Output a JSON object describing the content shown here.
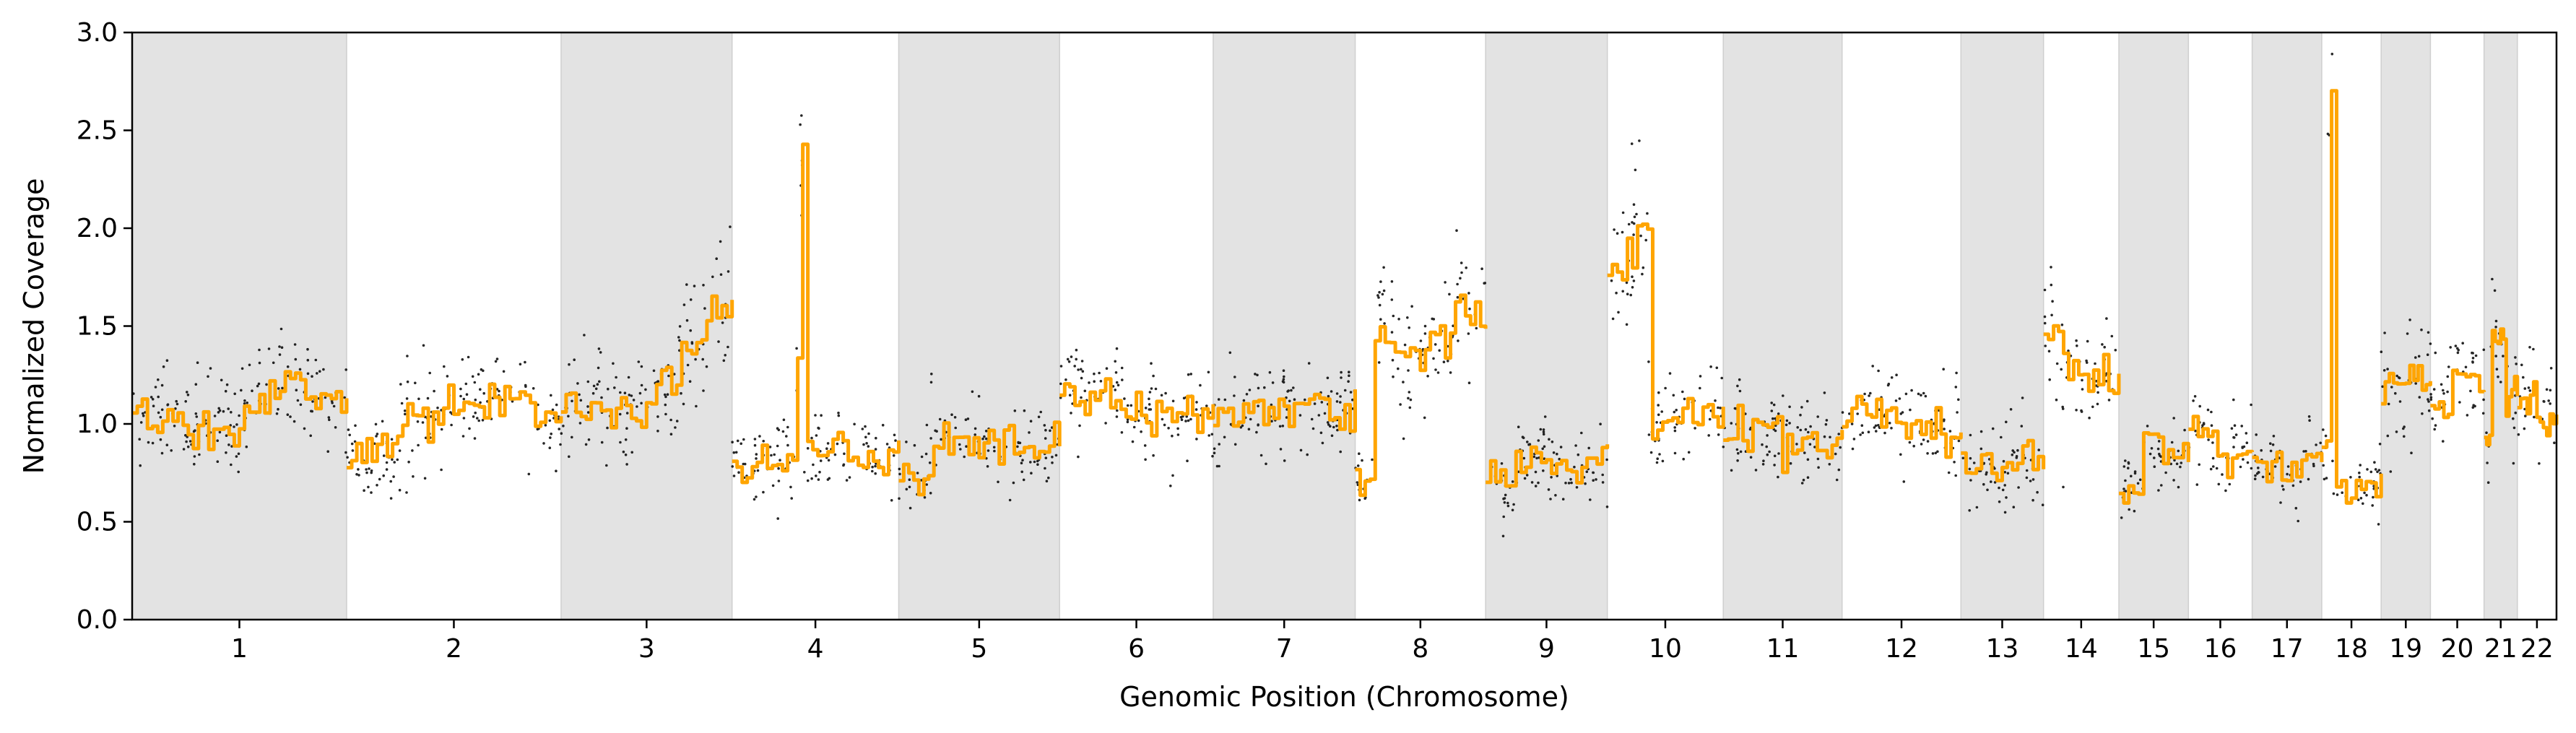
{
  "chart_data": {
    "type": "scatter",
    "title": "",
    "xlabel": "Genomic Position (Chromosome)",
    "ylabel": "Normalized Coverage",
    "ylim": [
      0.0,
      3.0
    ],
    "yticks": [
      "0.0",
      "0.5",
      "1.0",
      "1.5",
      "2.0",
      "2.5",
      "3.0"
    ],
    "grid": false,
    "legend": "none",
    "point_color": "#000000",
    "segment_color": "#FFA500",
    "band_color": "#e3e3e3",
    "chromosomes": [
      {
        "label": "1",
        "shaded": true,
        "segments": [
          [
            0.0,
            1.05
          ],
          [
            0.22,
            1.0
          ],
          [
            0.45,
            0.95
          ],
          [
            0.5,
            1.12
          ],
          [
            0.62,
            1.22
          ],
          [
            0.8,
            1.1
          ],
          [
            1.0,
            1.0
          ]
        ]
      },
      {
        "label": "2",
        "shaded": false,
        "segments": [
          [
            0.0,
            0.85
          ],
          [
            0.25,
            1.02
          ],
          [
            0.45,
            1.1
          ],
          [
            0.65,
            1.15
          ],
          [
            0.85,
            1.05
          ],
          [
            1.0,
            1.0
          ]
        ]
      },
      {
        "label": "3",
        "shaded": true,
        "segments": [
          [
            0.0,
            1.1
          ],
          [
            0.28,
            1.05
          ],
          [
            0.48,
            1.15
          ],
          [
            0.68,
            1.4
          ],
          [
            0.85,
            1.55
          ],
          [
            1.0,
            1.6
          ]
        ]
      },
      {
        "label": "4",
        "shaded": false,
        "segments": [
          [
            0.0,
            0.82
          ],
          [
            0.3,
            0.85
          ],
          [
            0.38,
            1.3
          ],
          [
            0.4,
            2.4
          ],
          [
            0.43,
            0.85
          ],
          [
            1.0,
            0.85
          ]
        ]
      },
      {
        "label": "5",
        "shaded": true,
        "segments": [
          [
            0.0,
            0.75
          ],
          [
            0.2,
            0.92
          ],
          [
            0.55,
            0.85
          ],
          [
            1.0,
            0.8
          ]
        ]
      },
      {
        "label": "6",
        "shaded": false,
        "segments": [
          [
            0.0,
            1.15
          ],
          [
            0.4,
            1.05
          ],
          [
            1.0,
            0.95
          ]
        ]
      },
      {
        "label": "7",
        "shaded": true,
        "segments": [
          [
            0.0,
            1.05
          ],
          [
            0.45,
            1.1
          ],
          [
            0.85,
            1.05
          ],
          [
            1.0,
            1.0
          ]
        ]
      },
      {
        "label": "8",
        "shaded": false,
        "segments": [
          [
            0.0,
            0.7
          ],
          [
            0.15,
            1.5
          ],
          [
            0.3,
            1.35
          ],
          [
            0.55,
            1.45
          ],
          [
            0.75,
            1.6
          ],
          [
            0.85,
            1.55
          ],
          [
            1.0,
            1.5
          ]
        ]
      },
      {
        "label": "9",
        "shaded": true,
        "segments": [
          [
            0.0,
            0.7
          ],
          [
            0.25,
            0.85
          ],
          [
            0.5,
            0.75
          ],
          [
            0.8,
            0.8
          ],
          [
            1.0,
            0.85
          ]
        ]
      },
      {
        "label": "10",
        "shaded": false,
        "segments": [
          [
            0.0,
            1.8
          ],
          [
            0.22,
            2.05
          ],
          [
            0.3,
            1.95
          ],
          [
            0.35,
            1.0
          ],
          [
            0.6,
            1.05
          ],
          [
            1.0,
            0.95
          ]
        ]
      },
      {
        "label": "11",
        "shaded": true,
        "segments": [
          [
            0.0,
            0.95
          ],
          [
            0.5,
            0.9
          ],
          [
            1.0,
            1.0
          ]
        ]
      },
      {
        "label": "12",
        "shaded": false,
        "segments": [
          [
            0.0,
            1.05
          ],
          [
            0.45,
            1.0
          ],
          [
            0.8,
            0.95
          ],
          [
            1.0,
            0.95
          ]
        ]
      },
      {
        "label": "13",
        "shaded": true,
        "segments": [
          [
            0.0,
            0.8
          ],
          [
            0.35,
            0.78
          ],
          [
            0.7,
            0.82
          ],
          [
            1.0,
            0.8
          ]
        ]
      },
      {
        "label": "14",
        "shaded": false,
        "segments": [
          [
            0.0,
            1.45
          ],
          [
            0.25,
            1.3
          ],
          [
            0.55,
            1.2
          ],
          [
            0.75,
            1.25
          ],
          [
            1.0,
            1.25
          ]
        ]
      },
      {
        "label": "15",
        "shaded": true,
        "segments": [
          [
            0.0,
            0.7
          ],
          [
            0.35,
            0.9
          ],
          [
            0.6,
            0.85
          ],
          [
            1.0,
            1.0
          ]
        ]
      },
      {
        "label": "16",
        "shaded": false,
        "segments": [
          [
            0.0,
            0.95
          ],
          [
            0.4,
            0.85
          ],
          [
            1.0,
            0.8
          ]
        ]
      },
      {
        "label": "17",
        "shaded": true,
        "segments": [
          [
            0.0,
            0.8
          ],
          [
            0.4,
            0.75
          ],
          [
            0.7,
            0.85
          ],
          [
            1.0,
            0.95
          ]
        ]
      },
      {
        "label": "18",
        "shaded": false,
        "segments": [
          [
            0.0,
            0.85
          ],
          [
            0.1,
            2.75
          ],
          [
            0.18,
            0.7
          ],
          [
            0.6,
            0.68
          ],
          [
            1.0,
            0.65
          ]
        ]
      },
      {
        "label": "19",
        "shaded": true,
        "segments": [
          [
            0.0,
            1.2
          ],
          [
            0.5,
            1.25
          ],
          [
            1.0,
            1.1
          ]
        ]
      },
      {
        "label": "20",
        "shaded": false,
        "segments": [
          [
            0.0,
            1.1
          ],
          [
            0.35,
            1.3
          ],
          [
            0.65,
            1.2
          ],
          [
            1.0,
            0.95
          ]
        ]
      },
      {
        "label": "21",
        "shaded": true,
        "segments": [
          [
            0.0,
            0.9
          ],
          [
            0.2,
            1.45
          ],
          [
            0.6,
            1.15
          ],
          [
            1.0,
            1.2
          ]
        ]
      },
      {
        "label": "22",
        "shaded": false,
        "segments": [
          [
            0.0,
            1.15
          ],
          [
            0.5,
            1.05
          ],
          [
            1.0,
            0.95
          ]
        ]
      }
    ]
  }
}
